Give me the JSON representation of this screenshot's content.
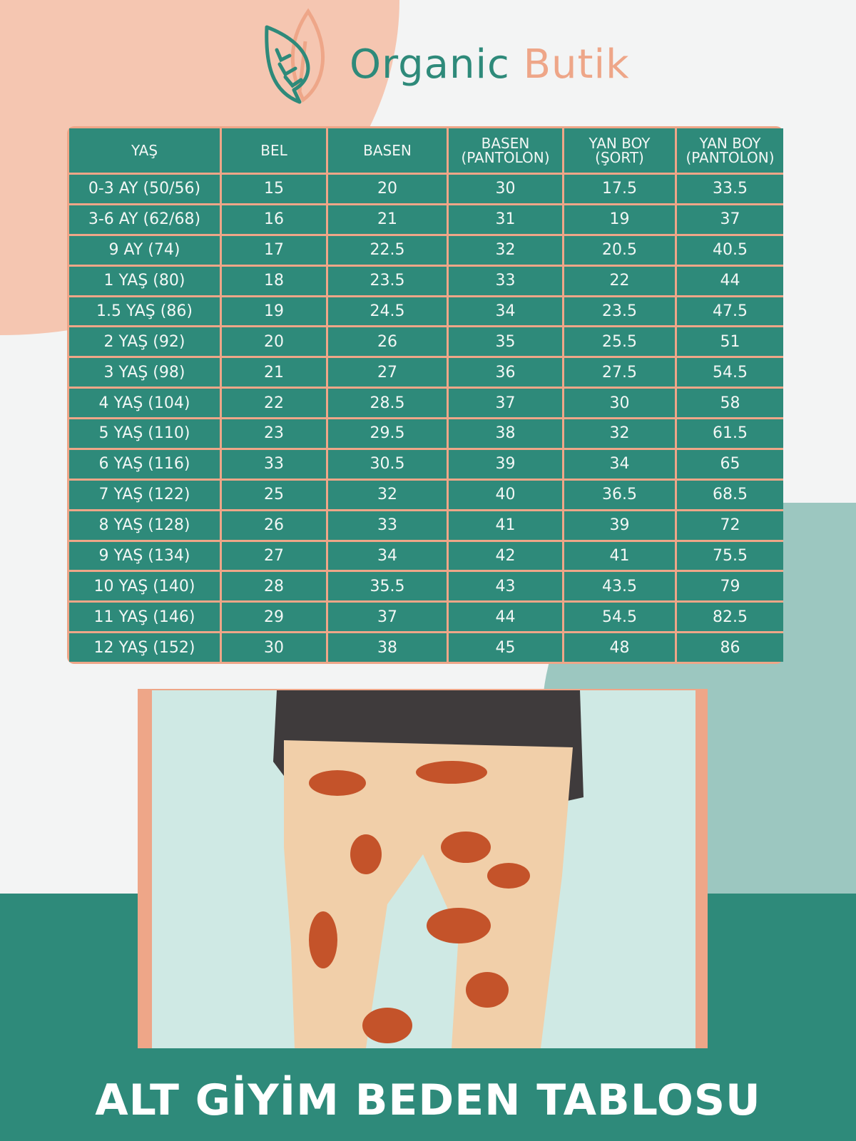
{
  "brand": {
    "name_part1": "Organic",
    "name_part2": "Butik",
    "logo_icon": "leaf-icon"
  },
  "colors": {
    "teal": "#2e8a7a",
    "peach": "#eea688",
    "mint": "#9cc7c0"
  },
  "table": {
    "headers": [
      "YAŞ",
      "BEL",
      "BASEN",
      "BASEN\n(PANTOLON)",
      "YAN BOY\n(ŞORT)",
      "YAN BOY\n(PANTOLON)"
    ],
    "rows": [
      [
        "0-3 AY (50/56)",
        "15",
        "20",
        "30",
        "17.5",
        "33.5"
      ],
      [
        "3-6 AY (62/68)",
        "16",
        "21",
        "31",
        "19",
        "37"
      ],
      [
        "9 AY (74)",
        "17",
        "22.5",
        "32",
        "20.5",
        "40.5"
      ],
      [
        "1 YAŞ (80)",
        "18",
        "23.5",
        "33",
        "22",
        "44"
      ],
      [
        "1.5 YAŞ (86)",
        "19",
        "24.5",
        "34",
        "23.5",
        "47.5"
      ],
      [
        "2 YAŞ (92)",
        "20",
        "26",
        "35",
        "25.5",
        "51"
      ],
      [
        "3 YAŞ (98)",
        "21",
        "27",
        "36",
        "27.5",
        "54.5"
      ],
      [
        "4 YAŞ (104)",
        "22",
        "28.5",
        "37",
        "30",
        "58"
      ],
      [
        "5 YAŞ (110)",
        "23",
        "29.5",
        "38",
        "32",
        "61.5"
      ],
      [
        "6 YAŞ (116)",
        "33",
        "30.5",
        "39",
        "34",
        "65"
      ],
      [
        "7 YAŞ (122)",
        "25",
        "32",
        "40",
        "36.5",
        "68.5"
      ],
      [
        "8 YAŞ (128)",
        "26",
        "33",
        "41",
        "39",
        "72"
      ],
      [
        "9 YAŞ (134)",
        "27",
        "34",
        "42",
        "41",
        "75.5"
      ],
      [
        "10 YAŞ (140)",
        "28",
        "35.5",
        "43",
        "43.5",
        "79"
      ],
      [
        "11 YAŞ (146)",
        "29",
        "37",
        "44",
        "54.5",
        "82.5"
      ],
      [
        "12 YAŞ (152)",
        "30",
        "38",
        "45",
        "48",
        "86"
      ]
    ]
  },
  "footer": {
    "title": "ALT GİYİM BEDEN TABLOSU"
  }
}
